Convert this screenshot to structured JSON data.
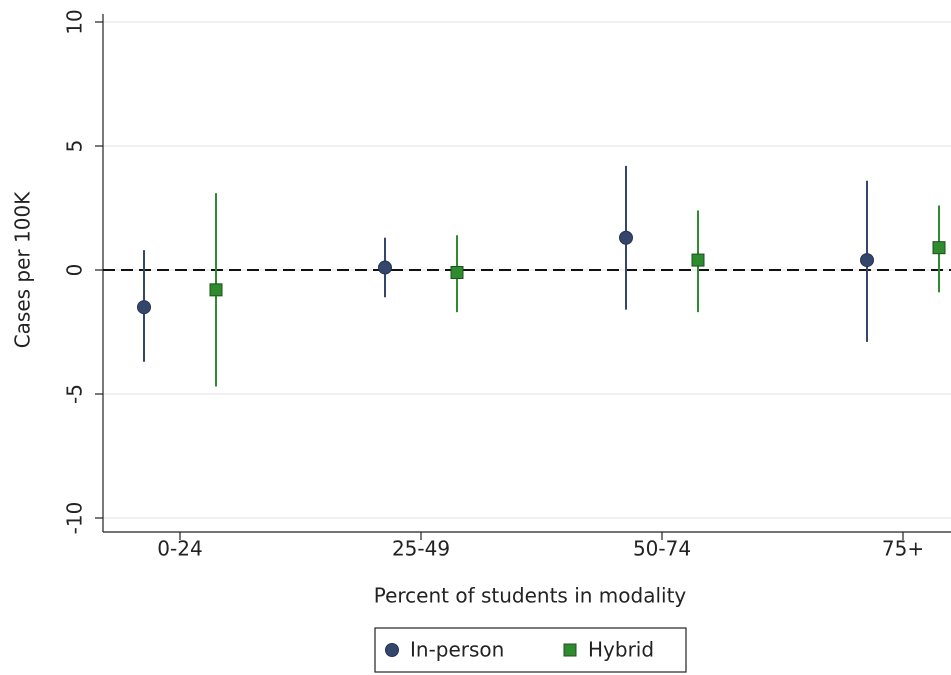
{
  "chart_data": {
    "type": "errorbar",
    "categories": [
      "0-24",
      "25-49",
      "50-74",
      "75+"
    ],
    "series": [
      {
        "name": "In-person",
        "color": "#34466b",
        "marker": "circle",
        "values": [
          -1.5,
          0.1,
          1.3,
          0.4
        ],
        "lower": [
          -3.7,
          -1.1,
          -1.6,
          -2.9
        ],
        "upper": [
          0.8,
          1.3,
          4.2,
          3.6
        ]
      },
      {
        "name": "Hybrid",
        "color": "#2e8b2e",
        "marker": "square",
        "values": [
          -0.8,
          -0.1,
          0.4,
          0.9
        ],
        "lower": [
          -4.7,
          -1.7,
          -1.7,
          -0.9
        ],
        "upper": [
          3.1,
          1.4,
          2.4,
          2.6
        ]
      }
    ],
    "xlabel": "Percent of students in modality",
    "ylabel": "Cases per 100K",
    "ylim": [
      -10.5,
      10
    ],
    "yticks": [
      -10,
      -5,
      0,
      5,
      10
    ],
    "reference_line": 0,
    "grid": true
  }
}
